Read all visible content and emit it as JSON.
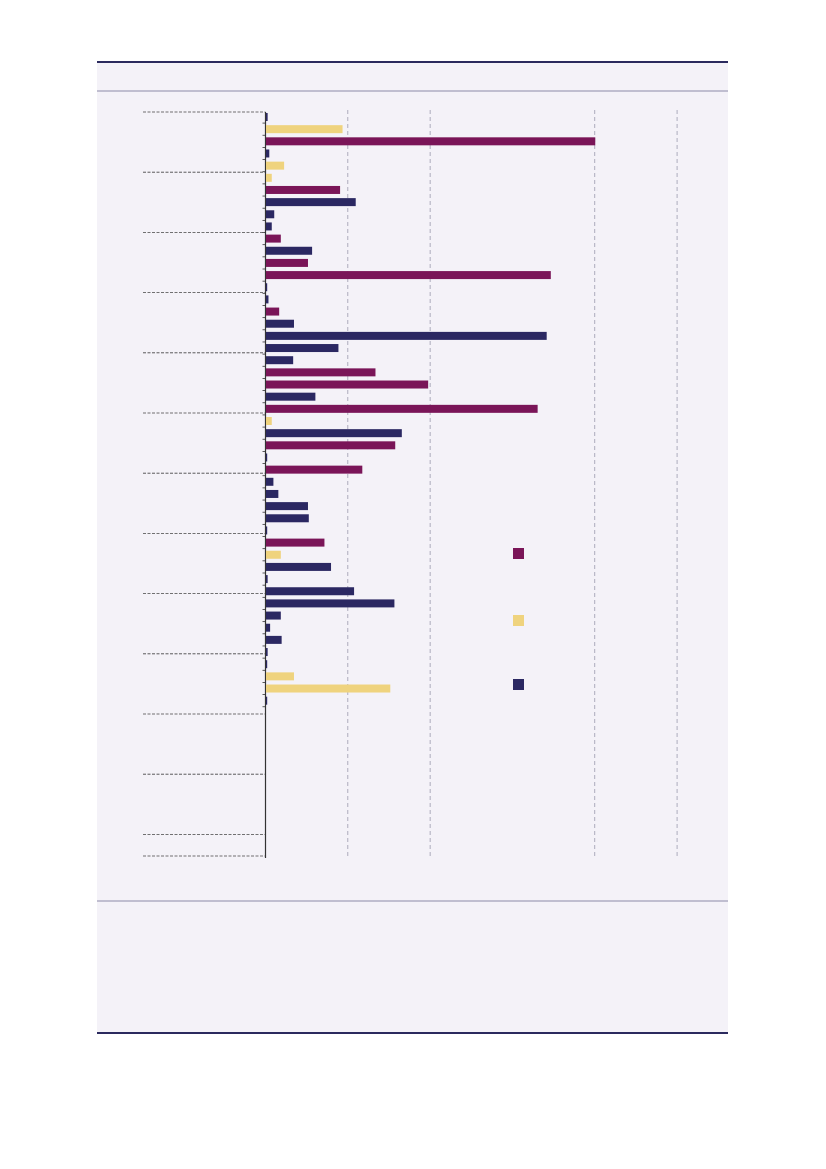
{
  "colors": {
    "panel_bg": "#f4f2f8",
    "rule": "#2b2a5e",
    "thin_rule": "#8c8aa8",
    "grid": "#9a9aae",
    "divider": "#444444",
    "series_purple": "#7a1558",
    "series_yellow": "#efd37e",
    "series_navy": "#2b2862"
  },
  "chart_data": {
    "type": "bar",
    "orientation": "horizontal",
    "title": "",
    "xlabel": "",
    "ylabel": "",
    "xlim": [
      0,
      540
    ],
    "x_gridlines": [
      100,
      200,
      400,
      500
    ],
    "grid": true,
    "category_groups": 13,
    "legend": {
      "placement": "right",
      "entries": [
        {
          "series": "purple"
        },
        {
          "series": "yellow"
        },
        {
          "series": "navy"
        }
      ]
    },
    "bars": [
      {
        "series": "navy",
        "value": 2
      },
      {
        "series": "yellow",
        "value": 93
      },
      {
        "series": "purple",
        "value": 400
      },
      {
        "series": "navy",
        "value": 4
      },
      {
        "series": "yellow",
        "value": 22
      },
      {
        "series": "yellow",
        "value": 7
      },
      {
        "series": "purple",
        "value": 90
      },
      {
        "series": "navy",
        "value": 109
      },
      {
        "series": "navy",
        "value": 10
      },
      {
        "series": "navy",
        "value": 7
      },
      {
        "series": "purple",
        "value": 18
      },
      {
        "series": "navy",
        "value": 56
      },
      {
        "series": "purple",
        "value": 51
      },
      {
        "series": "purple",
        "value": 346
      },
      {
        "series": "navy",
        "value": 1
      },
      {
        "series": "navy",
        "value": 3
      },
      {
        "series": "purple",
        "value": 16
      },
      {
        "series": "navy",
        "value": 34
      },
      {
        "series": "navy",
        "value": 341
      },
      {
        "series": "navy",
        "value": 88
      },
      {
        "series": "navy",
        "value": 33
      },
      {
        "series": "purple",
        "value": 133
      },
      {
        "series": "purple",
        "value": 197
      },
      {
        "series": "navy",
        "value": 60
      },
      {
        "series": "purple",
        "value": 330
      },
      {
        "series": "yellow",
        "value": 7
      },
      {
        "series": "navy",
        "value": 165
      },
      {
        "series": "purple",
        "value": 157
      },
      {
        "series": "navy",
        "value": 1
      },
      {
        "series": "purple",
        "value": 117
      },
      {
        "series": "navy",
        "value": 9
      },
      {
        "series": "navy",
        "value": 15
      },
      {
        "series": "navy",
        "value": 51
      },
      {
        "series": "navy",
        "value": 52
      },
      {
        "series": "navy",
        "value": 1
      },
      {
        "series": "purple",
        "value": 71
      },
      {
        "series": "yellow",
        "value": 18
      },
      {
        "series": "navy",
        "value": 79
      },
      {
        "series": "navy",
        "value": 2
      },
      {
        "series": "navy",
        "value": 107
      },
      {
        "series": "navy",
        "value": 156
      },
      {
        "series": "navy",
        "value": 18
      },
      {
        "series": "navy",
        "value": 5
      },
      {
        "series": "navy",
        "value": 19
      },
      {
        "series": "navy",
        "value": 2
      },
      {
        "series": "navy",
        "value": 1
      },
      {
        "series": "yellow",
        "value": 34
      },
      {
        "series": "yellow",
        "value": 151
      },
      {
        "series": "navy",
        "value": 1
      }
    ]
  }
}
